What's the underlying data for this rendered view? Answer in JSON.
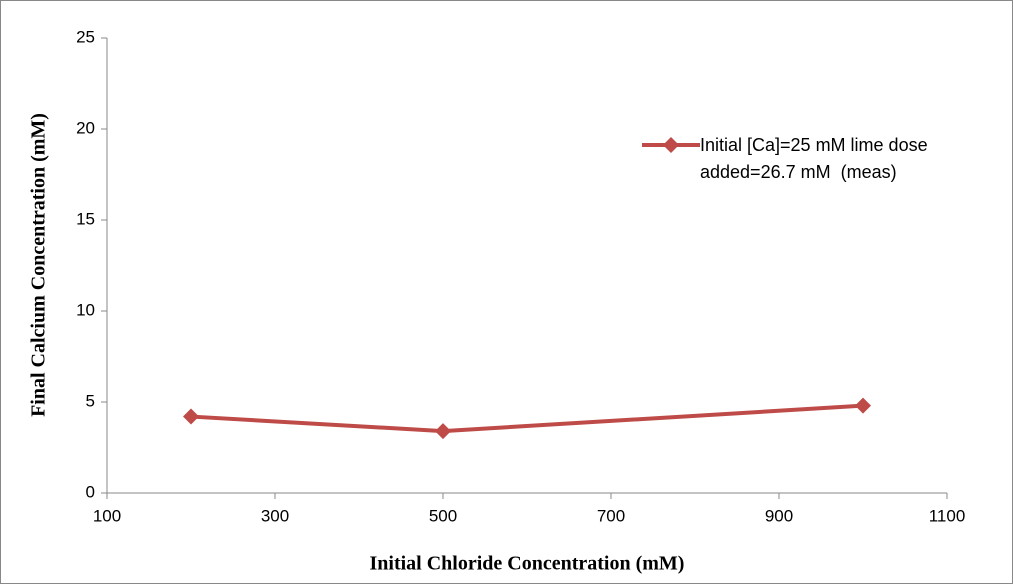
{
  "chart_data": {
    "type": "line",
    "x_label": "Initial Chloride Concentration (mM)",
    "y_label": "Final Calcium Concentration (mM)",
    "x": [
      200,
      500,
      1000
    ],
    "series": [
      {
        "name": "Initial [Ca]=25 mM lime dose added=26.7 mM  (meas)",
        "color": "#be4b48",
        "values": [
          4.2,
          3.4,
          4.8
        ]
      }
    ],
    "xlim": [
      100,
      1100
    ],
    "xticks": [
      100,
      300,
      500,
      700,
      900,
      1100
    ],
    "ylim": [
      0,
      25
    ],
    "yticks": [
      0,
      5,
      10,
      15,
      20,
      25
    ],
    "grid": false,
    "legend": "upper right"
  }
}
